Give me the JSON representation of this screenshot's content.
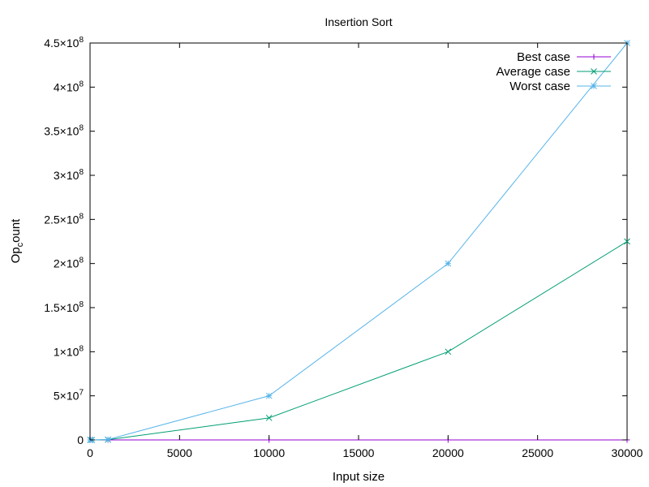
{
  "chart_data": {
    "type": "line",
    "title": "Insertion Sort",
    "xlabel": "Input size",
    "ylabel_parts": {
      "base": "Op",
      "sub": "c",
      "rest": "ount"
    },
    "xlim": [
      0,
      30000
    ],
    "ylim": [
      0,
      450000000
    ],
    "grid": false,
    "legend_position": "top-right",
    "x_ticks": [
      0,
      5000,
      10000,
      15000,
      20000,
      25000,
      30000
    ],
    "y_ticks": [
      {
        "value": 0,
        "mant": "0",
        "exp": ""
      },
      {
        "value": 50000000,
        "mant": "5",
        "exp": "7"
      },
      {
        "value": 100000000,
        "mant": "1",
        "exp": "8"
      },
      {
        "value": 150000000,
        "mant": "1.5",
        "exp": "8"
      },
      {
        "value": 200000000,
        "mant": "2",
        "exp": "8"
      },
      {
        "value": 250000000,
        "mant": "2.5",
        "exp": "8"
      },
      {
        "value": 300000000,
        "mant": "3",
        "exp": "8"
      },
      {
        "value": 350000000,
        "mant": "3.5",
        "exp": "8"
      },
      {
        "value": 400000000,
        "mant": "4",
        "exp": "8"
      },
      {
        "value": 450000000,
        "mant": "4.5",
        "exp": "8"
      }
    ],
    "x": [
      10,
      100,
      1000,
      10000,
      20000,
      30000
    ],
    "series": [
      {
        "name": "Best case",
        "color": "#9400d3",
        "marker": "plus",
        "values": [
          9,
          99,
          999,
          9999,
          19999,
          29999
        ]
      },
      {
        "name": "Average case",
        "color": "#009e73",
        "marker": "cross",
        "values": [
          25,
          2500,
          250000,
          25000000,
          100000000,
          225000000
        ]
      },
      {
        "name": "Worst case",
        "color": "#56b4e9",
        "marker": "star",
        "values": [
          50,
          5000,
          500000,
          50000000,
          200000000,
          450000000
        ]
      }
    ]
  }
}
